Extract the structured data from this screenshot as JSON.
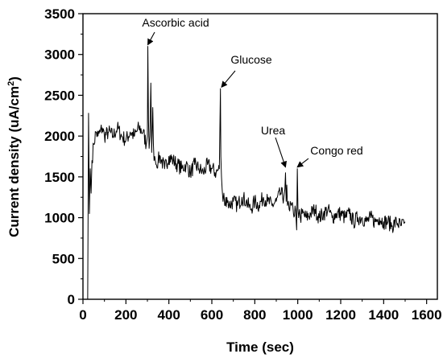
{
  "chart_data": {
    "type": "line",
    "xlabel": "Time (sec)",
    "ylabel_main": "Current density (uA/cm",
    "ylabel_sup": "2",
    "ylabel_end": ")",
    "xlim": [
      0,
      1650
    ],
    "ylim": [
      0,
      3500
    ],
    "xticks": [
      0,
      200,
      400,
      600,
      800,
      1000,
      1200,
      1400,
      1600
    ],
    "yticks": [
      0,
      500,
      1000,
      1500,
      2000,
      2500,
      3000,
      3500
    ],
    "grid": false,
    "line_color": "#000000",
    "series": [
      {
        "x": [
          0,
          8,
          16,
          22,
          26,
          30,
          34,
          38,
          42,
          50,
          60,
          70,
          80,
          90,
          100,
          120,
          140,
          160,
          180,
          200,
          220,
          240,
          260,
          280,
          295,
          300,
          302,
          305,
          308,
          312,
          316,
          320,
          325,
          328,
          331,
          334,
          340,
          350,
          360,
          380,
          400,
          420,
          440,
          460,
          480,
          500,
          520,
          540,
          560,
          580,
          600,
          620,
          635,
          640,
          642,
          645,
          648,
          652,
          656,
          660,
          670,
          680,
          700,
          720,
          740,
          760,
          780,
          800,
          820,
          840,
          860,
          880,
          900,
          920,
          935,
          940,
          943,
          946,
          949,
          952,
          956,
          960,
          970,
          980,
          990,
          995,
          998,
          1001,
          1004,
          1008,
          1012,
          1020,
          1040,
          1060,
          1080,
          1100,
          1120,
          1140,
          1160,
          1180,
          1200,
          1220,
          1240,
          1260,
          1280,
          1300,
          1320,
          1340,
          1360,
          1380,
          1400,
          1420,
          1440,
          1460,
          1480,
          1495,
          1500
        ],
        "y": [
          0,
          0,
          0,
          0,
          2280,
          1050,
          1600,
          1300,
          1700,
          1900,
          2050,
          2000,
          2050,
          2100,
          2000,
          2050,
          2000,
          2100,
          2000,
          1950,
          2050,
          2000,
          2100,
          2050,
          1900,
          2000,
          3100,
          2200,
          1850,
          2000,
          2650,
          1800,
          2350,
          1900,
          1700,
          1750,
          1650,
          1700,
          1750,
          1600,
          1750,
          1700,
          1650,
          1600,
          1650,
          1550,
          1650,
          1600,
          1550,
          1650,
          1600,
          1550,
          1600,
          2580,
          1750,
          1500,
          1350,
          1200,
          1300,
          1150,
          1250,
          1150,
          1200,
          1150,
          1250,
          1200,
          1100,
          1200,
          1150,
          1250,
          1200,
          1150,
          1200,
          1300,
          1250,
          1350,
          1550,
          1200,
          1400,
          1150,
          1200,
          1100,
          1150,
          1050,
          1100,
          850,
          1600,
          1100,
          1000,
          1100,
          1000,
          1050,
          1000,
          1050,
          1100,
          1000,
          1050,
          1100,
          1000,
          1050,
          1050,
          1000,
          1050,
          950,
          1000,
          1000,
          950,
          1000,
          950,
          1000,
          950,
          950,
          900,
          950,
          900,
          930,
          950
        ]
      }
    ],
    "annotations": [
      {
        "text": "Ascorbic acid",
        "target_x": 302,
        "target_y": 3100
      },
      {
        "text": "Glucose",
        "target_x": 645,
        "target_y": 2580
      },
      {
        "text": "Urea",
        "target_x": 943,
        "target_y": 1600
      },
      {
        "text": "Congo red",
        "target_x": 998,
        "target_y": 1600
      }
    ]
  }
}
